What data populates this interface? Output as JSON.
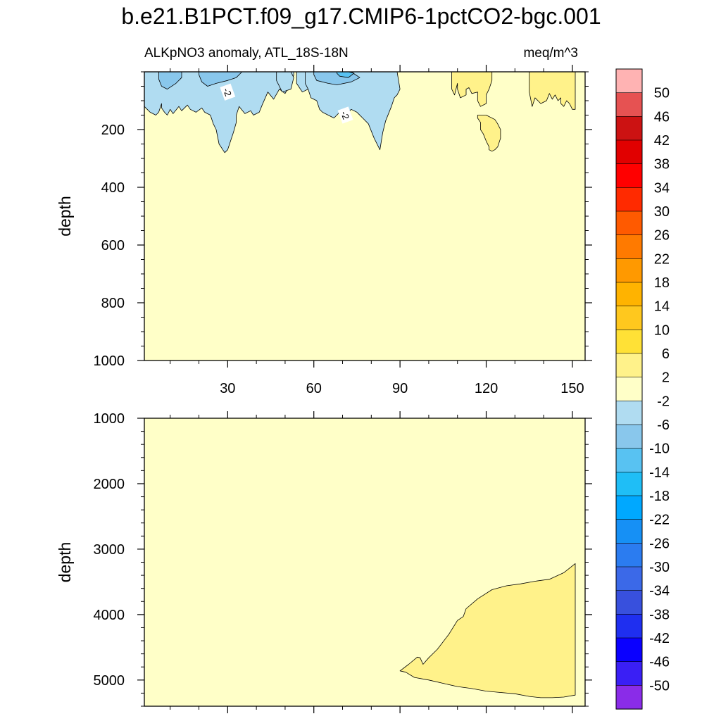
{
  "chart_data": {
    "type": "heatmap",
    "title": "b.e21.B1PCT.f09_g17.CMIP6-1pctCO2-bgc.001",
    "subtitle_left": "ALKpNO3 anomaly, ATL_18S-18N",
    "subtitle_right": "meq/m^3",
    "xlabel": "",
    "ylabel": "depth",
    "x_range": [
      1,
      151
    ],
    "x_ticks": [
      30,
      60,
      90,
      120,
      150
    ],
    "panels": [
      {
        "name": "upper",
        "ylim": [
          0,
          1000
        ],
        "y_ticks": [
          200,
          400,
          600,
          800,
          1000
        ],
        "y_inverted": true,
        "show_x_tick_labels": true,
        "contour_labels": [
          {
            "text": "-2",
            "x": 30,
            "depth": 70
          },
          {
            "text": "-2",
            "x": 71,
            "depth": 150
          }
        ],
        "background_level": "-2 to 2",
        "negative_regions": [
          {
            "level": "-6 to -2",
            "x": [
              1,
              4,
              6,
              8,
              9,
              11,
              11,
              14,
              15,
              16,
              17,
              20,
              23,
              26,
              28,
              29,
              29,
              31,
              33,
              35,
              37,
              39,
              40,
              43,
              45,
              47,
              49,
              50,
              51,
              52,
              53,
              53,
              52,
              50,
              48,
              46,
              44,
              42,
              41,
              39,
              38,
              36,
              34,
              33,
              33,
              32,
              30,
              29,
              27,
              26,
              25,
              24,
              22,
              21,
              19,
              17,
              16,
              14,
              13,
              11,
              10,
              9,
              8,
              7,
              7,
              6,
              5,
              4,
              3,
              2,
              1
            ],
            "depth": [
              0,
              0,
              0,
              0,
              0,
              0,
              0,
              0,
              0,
              0,
              0,
              0,
              0,
              0,
              0,
              0,
              0,
              0,
              0,
              0,
              0,
              0,
              0,
              0,
              0,
              0,
              0,
              0,
              0,
              0,
              0,
              12,
              40,
              75,
              60,
              95,
              70,
              115,
              140,
              150,
              135,
              145,
              120,
              150,
              175,
              210,
              270,
              280,
              250,
              200,
              180,
              150,
              140,
              125,
              140,
              130,
              115,
              135,
              120,
              145,
              130,
              150,
              140,
              125,
              110,
              140,
              150,
              145,
              140,
              130,
              120
            ]
          },
          {
            "level": "-6 to -2",
            "x": [
              47,
              50,
              52,
              53,
              52,
              49,
              47
            ],
            "depth": [
              0,
              0,
              0,
              20,
              60,
              70,
              30
            ]
          },
          {
            "level": "-6 to -2",
            "x": [
              54,
              57,
              59,
              59,
              58,
              56,
              54
            ],
            "depth": [
              0,
              0,
              0,
              30,
              60,
              70,
              40
            ]
          },
          {
            "level": "-6 to -2",
            "x": [
              57,
              63,
              69,
              75,
              80,
              85,
              89,
              90,
              89,
              88,
              87,
              85,
              84,
              83,
              81,
              79,
              77,
              75,
              73,
              71,
              69,
              67,
              65,
              63,
              62,
              61,
              59,
              58,
              57
            ],
            "depth": [
              0,
              0,
              0,
              0,
              0,
              0,
              0,
              60,
              80,
              90,
              120,
              170,
              210,
              270,
              230,
              180,
              160,
              140,
              130,
              150,
              140,
              160,
              150,
              140,
              130,
              100,
              90,
              60,
              40
            ]
          },
          {
            "level": "-10 to -6",
            "x": [
              6,
              10,
              14,
              14,
              12,
              9,
              7,
              6
            ],
            "depth": [
              0,
              0,
              0,
              20,
              40,
              60,
              50,
              25
            ]
          },
          {
            "level": "-10 to -6",
            "x": [
              20,
              26,
              31,
              35,
              33,
              30,
              26,
              23,
              21,
              20
            ],
            "depth": [
              0,
              0,
              0,
              0,
              20,
              30,
              40,
              50,
              35,
              10
            ]
          },
          {
            "level": "-10 to -6",
            "x": [
              60,
              67,
              73,
              76,
              73,
              68,
              65,
              61,
              60
            ],
            "depth": [
              0,
              0,
              0,
              20,
              35,
              45,
              40,
              30,
              10
            ]
          },
          {
            "level": "-14 to -10",
            "x": [
              68,
              72,
              74,
              72,
              69,
              68
            ],
            "depth": [
              0,
              0,
              5,
              20,
              15,
              5
            ]
          }
        ],
        "positive_regions": [
          {
            "level": "2 to 6",
            "x": [
              108,
              110,
              112,
              114,
              115,
              117,
              118,
              120,
              121,
              122,
              122,
              121,
              120,
              120,
              118,
              117,
              117,
              115,
              114,
              113,
              113,
              111,
              110,
              110,
              109,
              108
            ],
            "depth": [
              0,
              0,
              0,
              0,
              0,
              0,
              0,
              0,
              0,
              0,
              30,
              60,
              80,
              110,
              120,
              100,
              70,
              75,
              55,
              60,
              80,
              90,
              60,
              40,
              80,
              60
            ]
          },
          {
            "level": "2 to 6",
            "x": [
              117,
              120,
              123,
              124,
              125,
              125,
              124,
              123,
              122,
              121,
              121,
              120,
              119,
              118,
              118,
              117
            ],
            "depth": [
              150,
              150,
              165,
              180,
              200,
              230,
              260,
              270,
              275,
              270,
              260,
              240,
              215,
              200,
              175,
              160
            ]
          },
          {
            "level": "2 to 6",
            "x": [
              135,
              138,
              141,
              144,
              147,
              150,
              151,
              151,
              150,
              149,
              148,
              147,
              146,
              146,
              145,
              144,
              143,
              142,
              141,
              139,
              138,
              137,
              136,
              135
            ],
            "depth": [
              0,
              0,
              0,
              0,
              0,
              0,
              0,
              130,
              130,
              110,
              100,
              120,
              110,
              90,
              100,
              80,
              95,
              75,
              100,
              110,
              100,
              90,
              120,
              70
            ]
          }
        ]
      },
      {
        "name": "lower",
        "ylim": [
          1000,
          5400
        ],
        "y_ticks": [
          1000,
          2000,
          3000,
          4000,
          5000
        ],
        "y_inverted": true,
        "show_x_tick_labels": false,
        "background_level": "-2 to 2",
        "positive_regions": [
          {
            "level": "2 to 6",
            "x": [
              151,
              147,
              142,
              137,
              132,
              127,
              122,
              117,
              113,
              112,
              110,
              107,
              103,
              100,
              98,
              97,
              96,
              93,
              90,
              92,
              95,
              100,
              105,
              110,
              115,
              120,
              125,
              130,
              135,
              139,
              143,
              147,
              151
            ],
            "depth": [
              3220,
              3360,
              3460,
              3490,
              3530,
              3560,
              3620,
              3760,
              3910,
              4030,
              4090,
              4300,
              4530,
              4660,
              4760,
              4660,
              4650,
              4760,
              4860,
              4880,
              4960,
              5000,
              5050,
              5100,
              5130,
              5170,
              5190,
              5210,
              5250,
              5270,
              5270,
              5260,
              5230
            ]
          }
        ]
      }
    ],
    "colorbar": {
      "labels": [
        "50",
        "46",
        "42",
        "38",
        "34",
        "30",
        "26",
        "22",
        "18",
        "14",
        "10",
        "6",
        "2",
        "-2",
        "-6",
        "-10",
        "-14",
        "-18",
        "-22",
        "-26",
        "-30",
        "-34",
        "-38",
        "-42",
        "-46",
        "-50"
      ],
      "colors": [
        "#ffb3b3",
        "#e65252",
        "#cc1212",
        "#e10000",
        "#ff0000",
        "#ff2a00",
        "#ff5a00",
        "#ff7a00",
        "#ff9900",
        "#ffb300",
        "#ffc81e",
        "#ffe136",
        "#fff28a",
        "#ffffc8",
        "#b0dcf1",
        "#89c7ec",
        "#58c2f2",
        "#1fbef6",
        "#00a8ff",
        "#1690f5",
        "#2b7cf0",
        "#3b69e8",
        "#3850dd",
        "#1f2ff0",
        "#0a00ff",
        "#3a1ff5",
        "#8a2ce8"
      ]
    },
    "level_colors": {
      "-14 to -10": "#58c2f2",
      "-10 to -6": "#89c7ec",
      "-6 to -2": "#b0dcf1",
      "-2 to 2": "#ffffc8",
      "2 to 6": "#fff28a"
    }
  }
}
